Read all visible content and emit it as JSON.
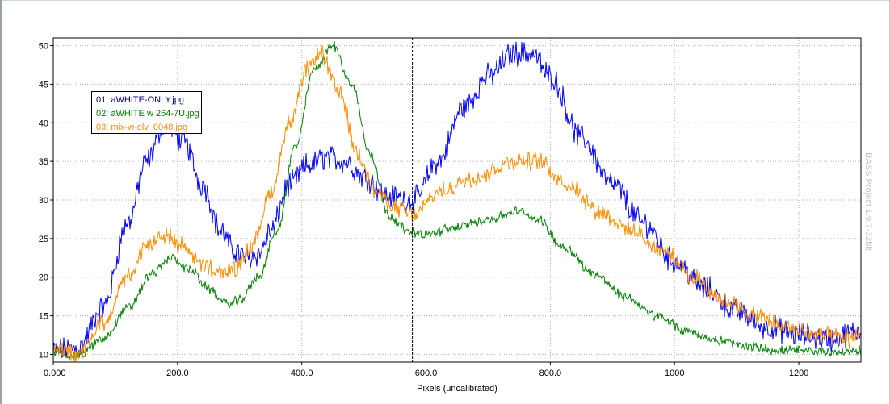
{
  "chart_data": {
    "type": "line",
    "xlabel": "Pixels (uncalibrated)",
    "ylabel": "",
    "xlim": [
      0,
      1300
    ],
    "ylim": [
      9,
      51
    ],
    "x_ticks": [
      0,
      200,
      400,
      600,
      800,
      1000,
      1200
    ],
    "x_tick_labels": [
      "0.000",
      "200.0",
      "400.0",
      "600.0",
      "800.0",
      "1000",
      "1200"
    ],
    "y_ticks": [
      10,
      15,
      20,
      25,
      30,
      35,
      40,
      45,
      50
    ],
    "y_tick_labels": [
      "10",
      "15",
      "20",
      "25",
      "30",
      "35",
      "40",
      "45",
      "50"
    ],
    "grid": true,
    "cursor_x": 578,
    "legend_position": "top-left",
    "series": [
      {
        "name": "01: aWHITE-ONLY.jpg",
        "color": "#0000ff",
        "noise": 1.3,
        "x": [
          0,
          40,
          80,
          120,
          150,
          180,
          210,
          240,
          270,
          290,
          310,
          330,
          350,
          380,
          410,
          440,
          470,
          500,
          540,
          580,
          620,
          660,
          700,
          740,
          770,
          800,
          850,
          900,
          950,
          1000,
          1050,
          1100,
          1150,
          1200,
          1250,
          1300
        ],
        "y": [
          10.5,
          10.8,
          16,
          27,
          35,
          40,
          37.5,
          32,
          26,
          23.5,
          22.5,
          23,
          26,
          32,
          34.5,
          35.5,
          35,
          33,
          30.5,
          30,
          35,
          42,
          46,
          49,
          49,
          46,
          38,
          32,
          27,
          22,
          18.5,
          15.5,
          13.5,
          12.5,
          12,
          13
        ]
      },
      {
        "name": "02: aWHITE w 264-7U.jpg",
        "color": "#008000",
        "noise": 0.5,
        "x": [
          0,
          40,
          80,
          120,
          160,
          190,
          220,
          250,
          280,
          300,
          330,
          360,
          390,
          420,
          450,
          480,
          510,
          540,
          570,
          600,
          650,
          700,
          750,
          780,
          820,
          870,
          920,
          970,
          1020,
          1070,
          1120,
          1170,
          1220,
          1270,
          1300
        ],
        "y": [
          10.2,
          9.8,
          12,
          16,
          20.5,
          22.5,
          21,
          18.5,
          16.5,
          17,
          20,
          26,
          37,
          47,
          50,
          45,
          36,
          28,
          26,
          25.5,
          26.5,
          27.5,
          28.5,
          27.5,
          24,
          20.5,
          17.5,
          15,
          13,
          11.8,
          11,
          10.5,
          10.4,
          10.3,
          10.5
        ]
      },
      {
        "name": "03: mix-w-olv_0048.jpg",
        "color": "#ff8c00",
        "noise": 0.9,
        "x": [
          0,
          40,
          80,
          120,
          150,
          180,
          210,
          240,
          270,
          290,
          320,
          350,
          380,
          410,
          430,
          460,
          490,
          520,
          550,
          580,
          620,
          680,
          740,
          780,
          830,
          880,
          930,
          980,
          1030,
          1080,
          1130,
          1180,
          1230,
          1280,
          1300
        ],
        "y": [
          10.5,
          10,
          14,
          20,
          24,
          25.5,
          24,
          21.5,
          20.5,
          21,
          24,
          31,
          40,
          47,
          49,
          44,
          36,
          31,
          29,
          28,
          31,
          33,
          35,
          35,
          32,
          28.5,
          26,
          23.5,
          20,
          17,
          15,
          13.5,
          12.5,
          12,
          12.5
        ]
      }
    ]
  },
  "watermark": "BASS Project 1.9.7-32bit"
}
